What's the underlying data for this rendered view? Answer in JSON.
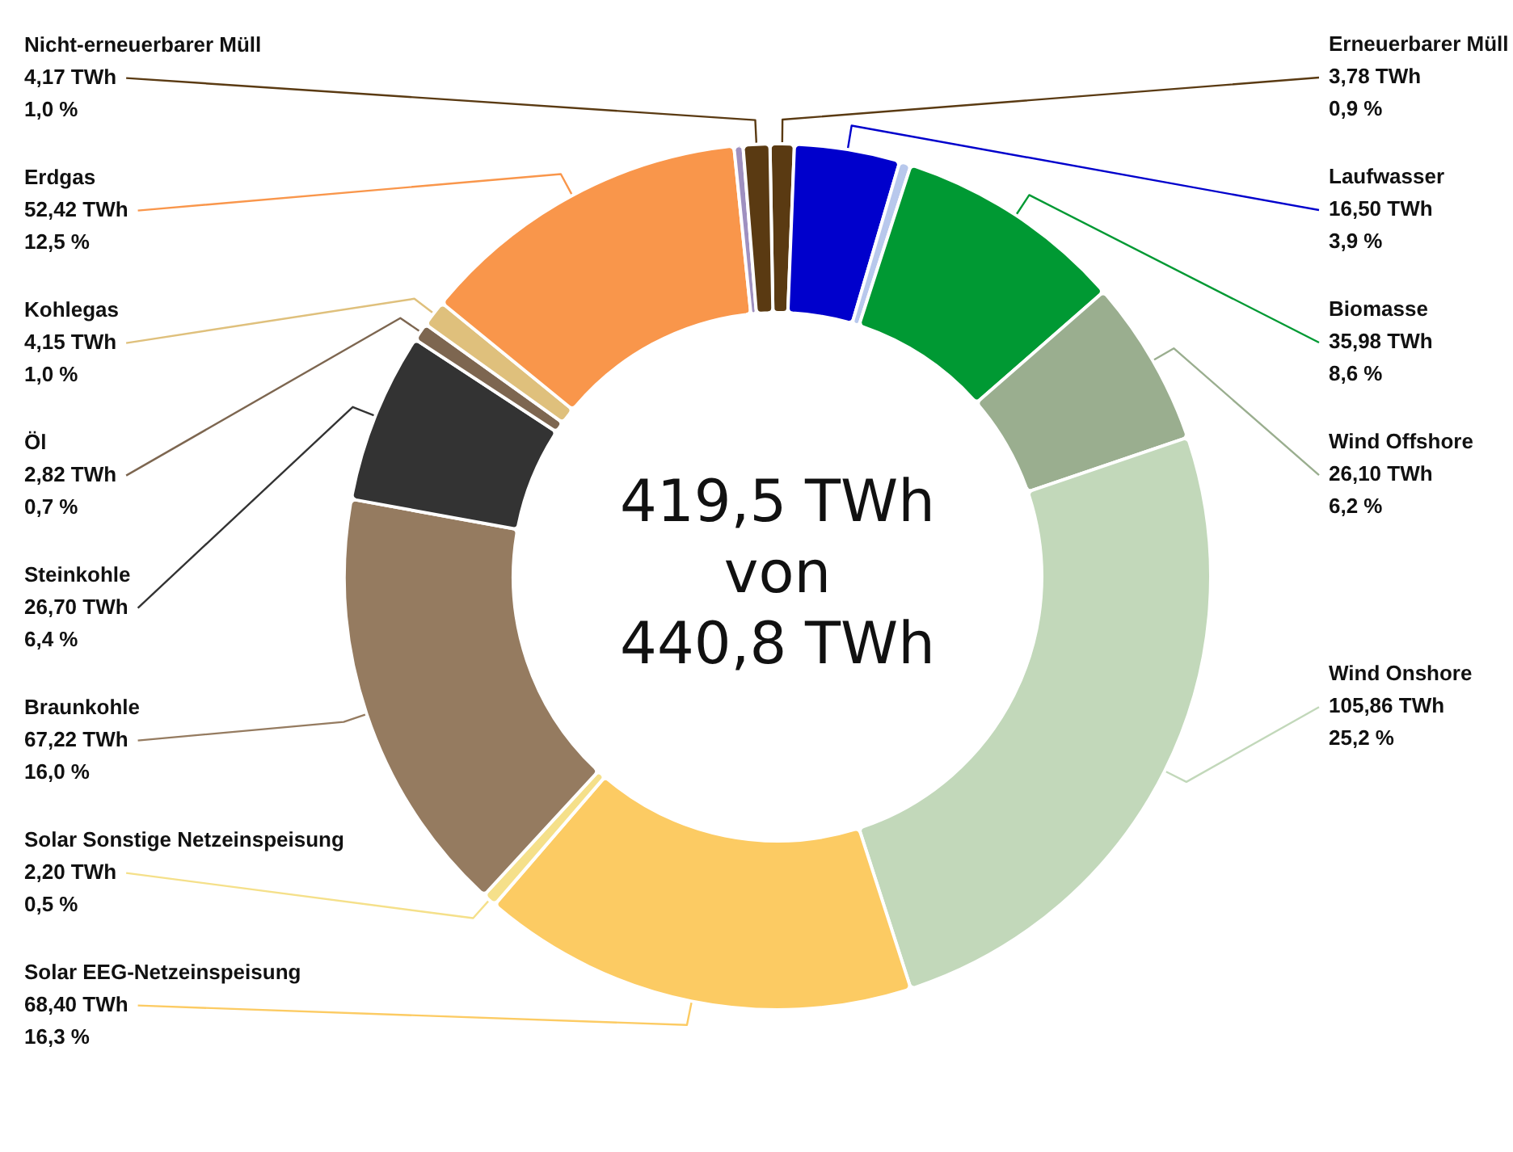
{
  "chart_data": {
    "type": "donut",
    "categories": [
      "Erneuerbarer Müll",
      "Laufwasser",
      null,
      "Biomasse",
      "Wind Offshore",
      "Wind Onshore",
      "Solar EEG-Netzeinspeisung",
      "Solar Sonstige Netzeinspeisung",
      "Braunkohle",
      "Steinkohle",
      "Öl",
      "Kohlegas",
      "Erdgas",
      null,
      "Nicht-erneuerbarer Müll"
    ],
    "values": [
      3.78,
      16.5,
      1.8,
      35.98,
      26.1,
      105.86,
      68.4,
      2.2,
      67.22,
      26.7,
      2.82,
      4.15,
      52.42,
      1.4,
      4.17
    ],
    "colors": [
      "#5a3a12",
      "#0000cc",
      "#b8c8ec",
      "#009933",
      "#9aae8f",
      "#c2d8ba",
      "#fccb63",
      "#f5e08a",
      "#957b60",
      "#333333",
      "#7d6650",
      "#dfc07c",
      "#f9964b",
      "#9f90c0",
      "#5a3a12"
    ],
    "value_labels": [
      "3,78 TWh\n0,9 %",
      "16,50 TWh\n3,9 %",
      null,
      "35,98 TWh\n8,6 %",
      "26,10 TWh\n6,2 %",
      "105,86 TWh\n25,2 %",
      "68,40 TWh\n16,3 %",
      "2,20 TWh\n0,5 %",
      "67,22 TWh\n16,0 %",
      "26,70 TWh\n6,4 %",
      "2,82 TWh\n0,7 %",
      "4,15 TWh\n1,0 %",
      "52,42 TWh\n12,5 %",
      null,
      "4,17 TWh\n1,0 %"
    ],
    "annotations": [
      "419,5 TWh",
      "von",
      "440,8 TWh"
    ],
    "legend": false
  }
}
